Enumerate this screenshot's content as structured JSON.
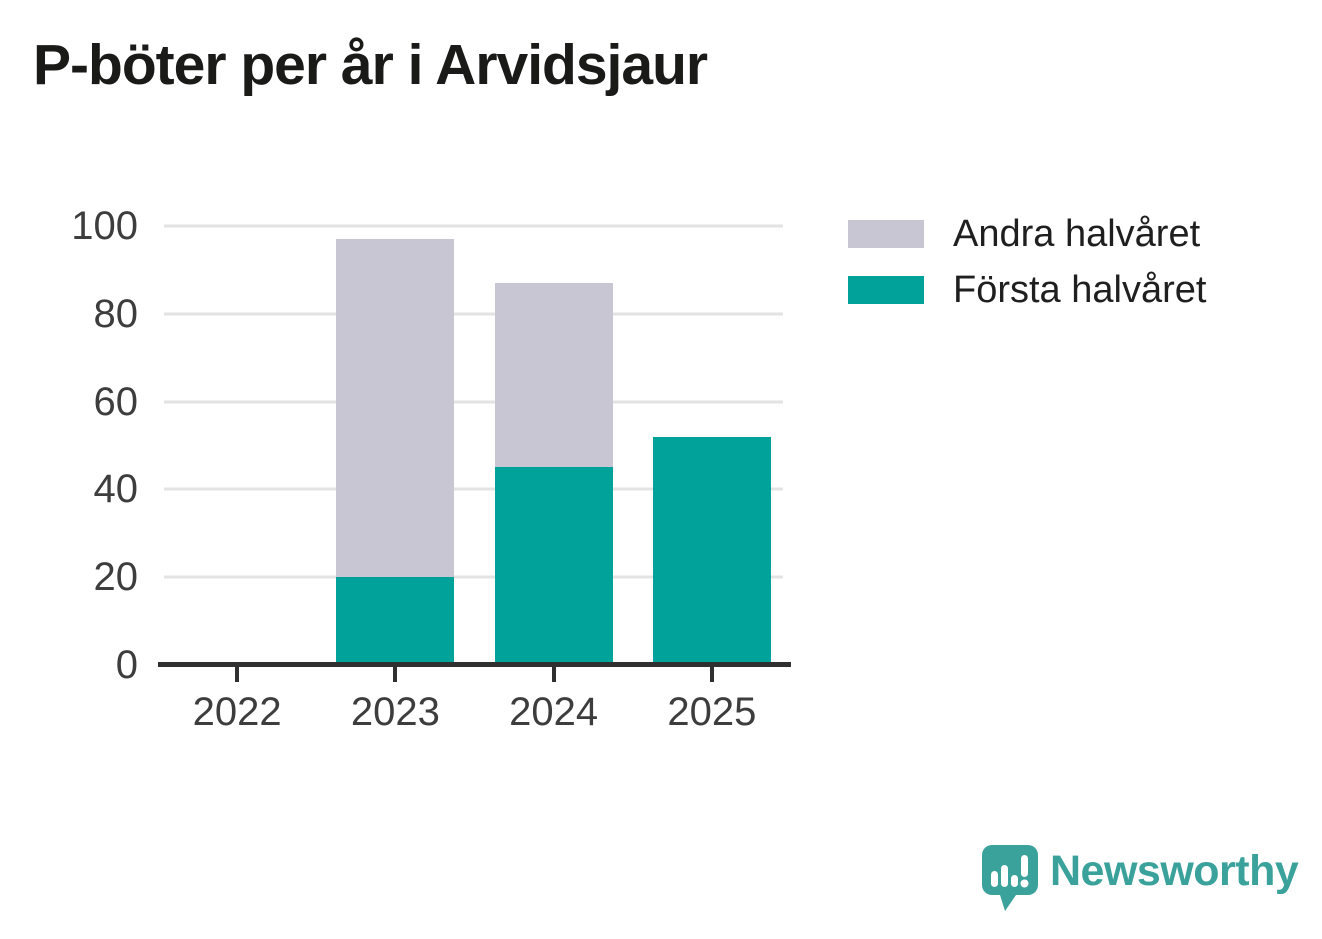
{
  "title": "P-böter per år i Arvidsjaur",
  "chart_data": {
    "type": "bar",
    "stacked": true,
    "title": "P-böter per år i Arvidsjaur",
    "categories": [
      "2022",
      "2023",
      "2024",
      "2025"
    ],
    "series": [
      {
        "name": "Första halvåret",
        "color": "#00a29a",
        "values": [
          0,
          20,
          45,
          52
        ]
      },
      {
        "name": "Andra halvåret",
        "color": "#c9c6d3",
        "values": [
          0,
          77,
          42,
          0
        ]
      }
    ],
    "totals": [
      0,
      97,
      87,
      52
    ],
    "xlabel": "",
    "ylabel": "",
    "ylim": [
      0,
      100
    ],
    "yticks": [
      0,
      20,
      40,
      60,
      80,
      100
    ],
    "grid": true,
    "legend_position": "right-top",
    "legend": [
      {
        "label": "Andra halvåret",
        "color": "#c9c6d3"
      },
      {
        "label": "Första halvåret",
        "color": "#00a29a"
      }
    ]
  },
  "colors": {
    "first_half": "#00a29a",
    "second_half": "#c9c6d3",
    "axis_line": "#303030",
    "gridline": "#e3e3e3",
    "tick_text": "#3d3d3d",
    "title_text": "#1a1a18",
    "brand_teal": "#3ba19b"
  },
  "footer": {
    "brand": "Newsworthy"
  }
}
